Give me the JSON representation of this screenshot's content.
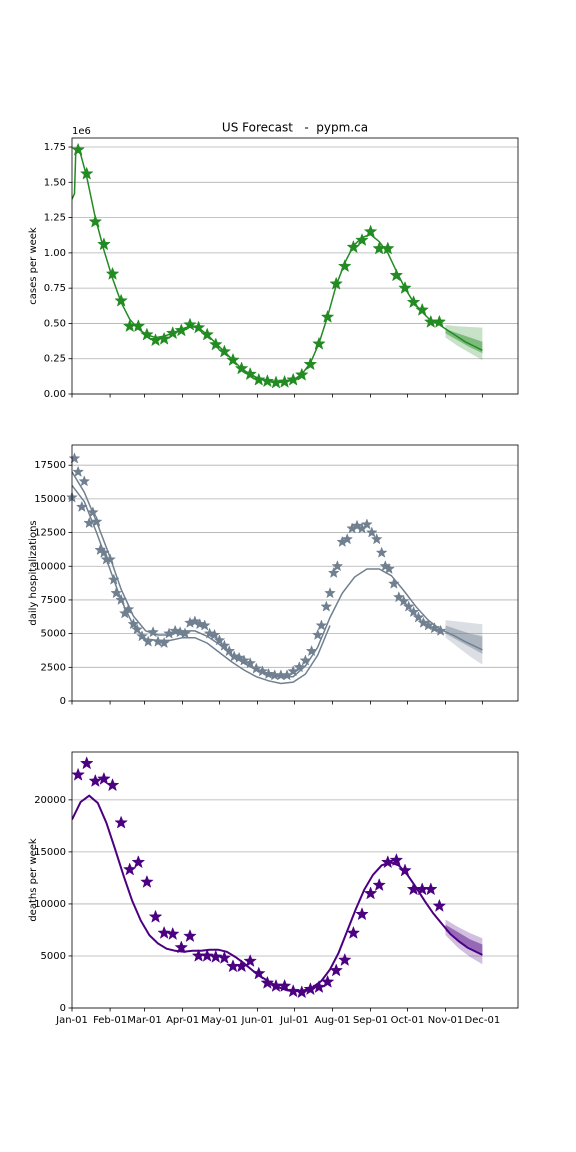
{
  "chart_data": [
    {
      "type": "line",
      "title": "US Forecast   -  pypm.ca",
      "ylabel": "cases per week",
      "y_offset_label": "1e6",
      "xlim": [
        0,
        363
      ],
      "xticks": [
        0,
        31,
        59,
        90,
        120,
        151,
        181,
        212,
        243,
        273,
        304,
        334
      ],
      "ylim": [
        0,
        1814000
      ],
      "yticks": [
        {
          "value": 0,
          "label": "0.00"
        },
        {
          "value": 250000,
          "label": "0.25"
        },
        {
          "value": 500000,
          "label": "0.50"
        },
        {
          "value": 750000,
          "label": "0.75"
        },
        {
          "value": 1000000,
          "label": "1.00"
        },
        {
          "value": 1250000,
          "label": "1.25"
        },
        {
          "value": 1500000,
          "label": "1.50"
        },
        {
          "value": 1750000,
          "label": "1.75"
        }
      ],
      "grid": "y",
      "bands": [
        {
          "color": "#228b22",
          "alpha": 0.25,
          "x": [
            304,
            314,
            324,
            334
          ],
          "lower": [
            400000,
            340000,
            290000,
            240000
          ],
          "upper": [
            490000,
            480000,
            475000,
            470000
          ]
        },
        {
          "color": "#228b22",
          "alpha": 0.45,
          "x": [
            304,
            314,
            324,
            334
          ],
          "lower": [
            430000,
            380000,
            330000,
            290000
          ],
          "upper": [
            460000,
            430000,
            400000,
            370000
          ]
        }
      ],
      "series": [
        {
          "color": "#228b22",
          "x": [
            0,
            2,
            3,
            5,
            7,
            12,
            19,
            26,
            33,
            40,
            47,
            54,
            61,
            68,
            75,
            82,
            89,
            96,
            103,
            110,
            117,
            124,
            131,
            138,
            145,
            152,
            159,
            166,
            173,
            180,
            187,
            194,
            201,
            208,
            215,
            222,
            229,
            236,
            243,
            250,
            257,
            264,
            271,
            278,
            285,
            292,
            299,
            306,
            313,
            320,
            327,
            334
          ],
          "values": [
            1380000,
            1420000,
            1700000,
            1730000,
            1700000,
            1540000,
            1250000,
            1020000,
            820000,
            650000,
            530000,
            460000,
            420000,
            400000,
            410000,
            430000,
            460000,
            480000,
            470000,
            420000,
            360000,
            300000,
            240000,
            180000,
            140000,
            110000,
            90000,
            80000,
            85000,
            100000,
            140000,
            220000,
            360000,
            550000,
            770000,
            930000,
            1050000,
            1110000,
            1130000,
            1080000,
            1000000,
            870000,
            750000,
            650000,
            580000,
            520000,
            490000,
            450000,
            410000,
            370000,
            340000,
            310000
          ]
        },
        {
          "color": "#228b22",
          "marker": "*",
          "x": [
            5,
            12,
            19,
            26,
            33,
            40,
            47,
            54,
            61,
            68,
            75,
            82,
            89,
            96,
            103,
            110,
            117,
            124,
            131,
            138,
            145,
            152,
            159,
            166,
            173,
            180,
            187,
            194,
            201,
            208,
            215,
            222,
            229,
            236,
            243,
            250,
            257,
            264,
            271,
            278,
            285,
            292,
            299
          ],
          "values": [
            1730000,
            1560000,
            1220000,
            1060000,
            850000,
            660000,
            480000,
            480000,
            420000,
            380000,
            390000,
            430000,
            450000,
            490000,
            470000,
            420000,
            350000,
            300000,
            240000,
            180000,
            140000,
            100000,
            90000,
            80000,
            85000,
            100000,
            135000,
            210000,
            355000,
            545000,
            780000,
            905000,
            1040000,
            1090000,
            1150000,
            1030000,
            1030000,
            840000,
            750000,
            650000,
            595000,
            510000,
            510000
          ]
        }
      ]
    },
    {
      "type": "line",
      "ylabel": "daily hospitalizations",
      "xlim": [
        0,
        363
      ],
      "xticks": [
        0,
        31,
        59,
        90,
        120,
        151,
        181,
        212,
        243,
        273,
        304,
        334
      ],
      "ylim": [
        0,
        19000
      ],
      "yticks": [
        0,
        2500,
        5000,
        7500,
        10000,
        12500,
        15000,
        17500
      ],
      "grid": "y",
      "bands": [
        {
          "color": "#708090",
          "alpha": 0.25,
          "x": [
            304,
            314,
            324,
            334
          ],
          "lower": [
            4700,
            4000,
            3300,
            2700
          ],
          "upper": [
            6000,
            5900,
            5800,
            5700
          ]
        },
        {
          "color": "#708090",
          "alpha": 0.45,
          "x": [
            304,
            314,
            324,
            334
          ],
          "lower": [
            5000,
            4500,
            4000,
            3500
          ],
          "upper": [
            5600,
            5300,
            5000,
            4800
          ]
        }
      ],
      "series": [
        {
          "color": "#708090",
          "x": [
            0,
            10,
            20,
            30,
            40,
            50,
            60,
            70,
            80,
            90,
            100,
            110,
            120,
            130,
            140,
            150,
            160,
            170,
            180,
            190,
            200,
            210,
            220,
            230,
            240,
            250,
            260,
            270,
            280,
            290,
            300,
            310,
            320,
            334
          ],
          "values": [
            17000,
            15500,
            13300,
            10900,
            8300,
            6300,
            5200,
            4900,
            4900,
            5200,
            5200,
            4800,
            4200,
            3400,
            2800,
            2300,
            1900,
            1800,
            1800,
            2600,
            4000,
            6200,
            8000,
            9200,
            9800,
            9800,
            9300,
            8200,
            7000,
            6000,
            5300,
            4900,
            4400,
            3800
          ]
        },
        {
          "color": "#708090",
          "x": [
            0,
            10,
            20,
            30,
            40,
            50,
            60,
            70,
            80,
            90,
            100,
            110,
            120,
            130,
            140,
            150,
            160,
            170,
            180,
            190,
            200,
            210
          ],
          "values": [
            16000,
            14800,
            12500,
            10000,
            7500,
            5600,
            4600,
            4500,
            4500,
            4700,
            4700,
            4300,
            3600,
            2900,
            2300,
            1800,
            1500,
            1300,
            1400,
            2000,
            3400,
            5600
          ]
        },
        {
          "color": "#708090",
          "marker": "*",
          "x": [
            0,
            2,
            5,
            8,
            10,
            14,
            17,
            20,
            23,
            26,
            28,
            31,
            34,
            36,
            40,
            43,
            46,
            50,
            53,
            57,
            62,
            66,
            70,
            75,
            79,
            84,
            88,
            92,
            96,
            100,
            104,
            108,
            112,
            116,
            120,
            124,
            128,
            132,
            136,
            140,
            145,
            150,
            155,
            160,
            165,
            170,
            175,
            180,
            185,
            190,
            195,
            200,
            203,
            207,
            210,
            213,
            216,
            220,
            224,
            228,
            232,
            236,
            240,
            244,
            248,
            252,
            255,
            258,
            262,
            266,
            270,
            274,
            278,
            282,
            286,
            290,
            295,
            300
          ],
          "values": [
            15100,
            18000,
            17000,
            14400,
            16300,
            13200,
            14000,
            13300,
            11200,
            11000,
            10500,
            10500,
            9000,
            8000,
            7500,
            6500,
            6800,
            5700,
            5300,
            4800,
            4400,
            5100,
            4400,
            4300,
            5000,
            5200,
            5100,
            5000,
            5800,
            5900,
            5700,
            5600,
            5000,
            4900,
            4500,
            4100,
            3700,
            3300,
            3200,
            3000,
            2800,
            2400,
            2200,
            2000,
            1900,
            1900,
            1900,
            2200,
            2500,
            3000,
            3700,
            4900,
            5600,
            7000,
            8000,
            9500,
            10000,
            11800,
            12000,
            12800,
            13000,
            12800,
            13100,
            12500,
            12000,
            11000,
            10000,
            9800,
            8700,
            7700,
            7400,
            7000,
            6600,
            6200,
            5800,
            5600,
            5400,
            5200
          ]
        }
      ]
    },
    {
      "type": "line",
      "ylabel": "deaths per week",
      "xlim": [
        0,
        363
      ],
      "xticks": [
        {
          "value": 0,
          "label": "Jan-01"
        },
        {
          "value": 31,
          "label": "Feb-01"
        },
        {
          "value": 59,
          "label": "Mar-01"
        },
        {
          "value": 90,
          "label": "Apr-01"
        },
        {
          "value": 120,
          "label": "May-01"
        },
        {
          "value": 151,
          "label": "Jun-01"
        },
        {
          "value": 181,
          "label": "Jul-01"
        },
        {
          "value": 212,
          "label": "Aug-01"
        },
        {
          "value": 243,
          "label": "Sep-01"
        },
        {
          "value": 273,
          "label": "Oct-01"
        },
        {
          "value": 304,
          "label": "Nov-01"
        },
        {
          "value": 334,
          "label": "Dec-01"
        }
      ],
      "ylim": [
        0,
        24600
      ],
      "yticks": [
        0,
        5000,
        10000,
        15000,
        20000
      ],
      "grid": "y",
      "bands": [
        {
          "color": "#4b0082",
          "alpha": 0.25,
          "x": [
            304,
            314,
            324,
            334
          ],
          "lower": [
            7000,
            5800,
            4900,
            4200
          ],
          "upper": [
            8500,
            7800,
            7200,
            6700
          ]
        },
        {
          "color": "#4b0082",
          "alpha": 0.45,
          "x": [
            304,
            314,
            324,
            334
          ],
          "lower": [
            7400,
            6500,
            5800,
            5200
          ],
          "upper": [
            8000,
            7300,
            6600,
            6100
          ]
        }
      ],
      "series": [
        {
          "color": "#4b0082",
          "x": [
            0,
            7,
            14,
            21,
            28,
            35,
            42,
            49,
            56,
            63,
            70,
            77,
            84,
            91,
            98,
            105,
            112,
            119,
            126,
            133,
            140,
            147,
            154,
            161,
            168,
            175,
            182,
            189,
            196,
            203,
            210,
            217,
            224,
            231,
            238,
            245,
            252,
            259,
            266,
            273,
            280,
            287,
            294,
            301,
            308,
            315,
            322,
            334
          ],
          "values": [
            18100,
            19800,
            20400,
            19700,
            17800,
            15300,
            12700,
            10300,
            8400,
            7000,
            6200,
            5700,
            5500,
            5400,
            5500,
            5500,
            5600,
            5600,
            5400,
            4900,
            4300,
            3600,
            3000,
            2500,
            2000,
            1700,
            1600,
            1700,
            2000,
            2600,
            3700,
            5300,
            7400,
            9500,
            11400,
            12800,
            13700,
            14000,
            13700,
            12800,
            11600,
            10300,
            9100,
            8100,
            7100,
            6400,
            5800,
            5100
          ]
        },
        {
          "color": "#4b0082",
          "marker": "*",
          "x": [
            5,
            12,
            19,
            26,
            33,
            40,
            47,
            54,
            61,
            68,
            75,
            82,
            89,
            96,
            103,
            110,
            117,
            124,
            131,
            138,
            145,
            152,
            159,
            166,
            173,
            180,
            187,
            194,
            201,
            208,
            215,
            222,
            229,
            236,
            243,
            250,
            257,
            264,
            271,
            278,
            285,
            292,
            299
          ],
          "values": [
            22400,
            23500,
            21800,
            22000,
            21400,
            17800,
            13300,
            14000,
            12100,
            8750,
            7200,
            7100,
            5800,
            6900,
            5000,
            5000,
            4900,
            4800,
            4000,
            4000,
            4500,
            3300,
            2400,
            2100,
            2100,
            1600,
            1500,
            1800,
            2000,
            2500,
            3600,
            4600,
            7200,
            9000,
            11000,
            11800,
            14000,
            14200,
            13200,
            11400,
            11400,
            11400,
            9800
          ]
        }
      ]
    }
  ]
}
